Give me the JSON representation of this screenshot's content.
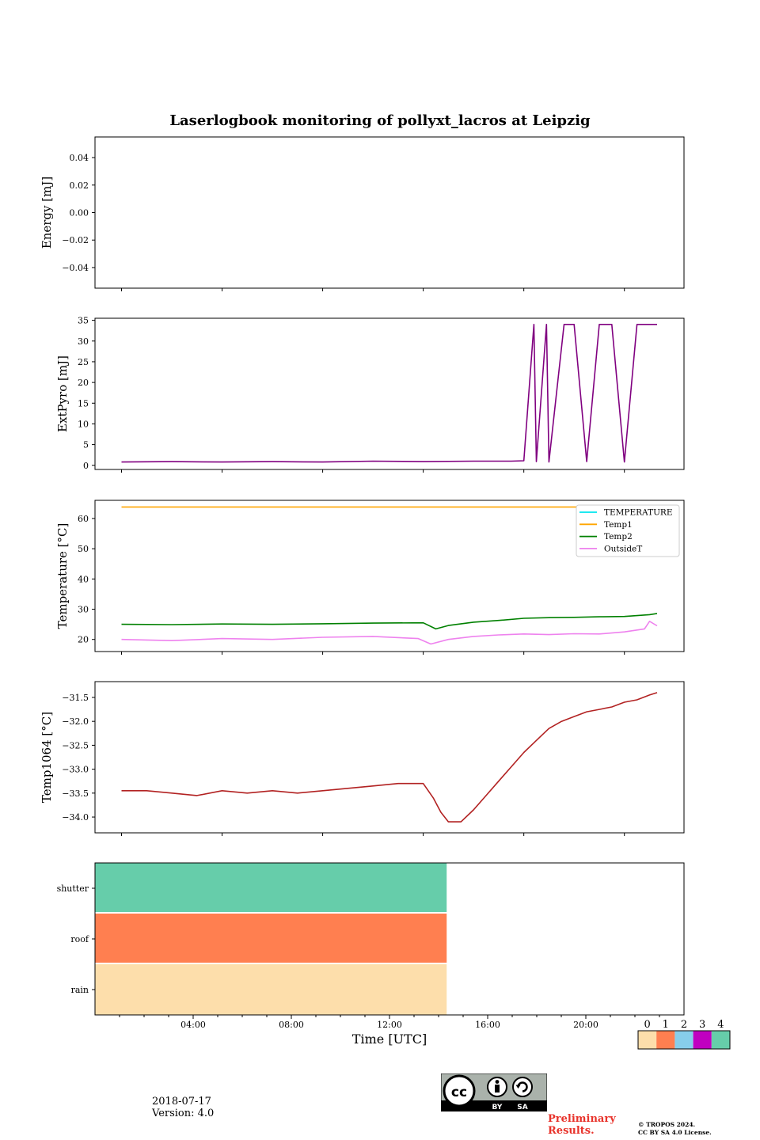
{
  "chart_data": [
    {
      "type": "line",
      "title": "Laserlogbook monitoring of pollyxt_lacros at Leipzig",
      "ylabel": "Energy [mJ]",
      "ylim": [
        -0.055,
        0.055
      ],
      "yticks": [
        "0.04",
        "0.02",
        "0.00",
        "−0.02",
        "−0.04"
      ],
      "ytick_values": [
        0.04,
        0.02,
        0.0,
        -0.02,
        -0.04
      ],
      "xtick_hours": [
        1,
        5,
        9,
        13,
        17,
        21
      ],
      "series": []
    },
    {
      "type": "line",
      "ylabel": "ExtPyro [mJ]",
      "ylim": [
        -1,
        35.5
      ],
      "yticks": [
        "35",
        "30",
        "25",
        "20",
        "15",
        "10",
        "5",
        "0"
      ],
      "ytick_values": [
        35,
        30,
        25,
        20,
        15,
        10,
        5,
        0
      ],
      "color": "#800080",
      "series": [
        {
          "x_hours": [
            1.0,
            3.0,
            5.0,
            7.0,
            9.0,
            11.0,
            13.0,
            15.0,
            16.5,
            17.0,
            17.4,
            17.5,
            17.9,
            18.0,
            18.6,
            19.0,
            19.5,
            20.0,
            20.5,
            21.0,
            21.5,
            22.0,
            22.3
          ],
          "values": [
            0.8,
            0.9,
            0.8,
            0.9,
            0.8,
            1.0,
            0.9,
            1.0,
            1.0,
            1.1,
            34,
            0.9,
            34,
            0.8,
            34,
            34,
            0.9,
            34,
            34,
            0.8,
            34,
            34,
            34
          ]
        }
      ]
    },
    {
      "type": "line",
      "ylabel": "Temperature [°C]",
      "ylim": [
        16,
        66
      ],
      "yticks": [
        "60",
        "50",
        "40",
        "30",
        "20"
      ],
      "ytick_values": [
        60,
        50,
        40,
        30,
        20
      ],
      "legend": "top-right",
      "series": [
        {
          "name": "TEMPERATURE",
          "color": "#00e5ee",
          "x_hours": [],
          "values": []
        },
        {
          "name": "Temp1",
          "color": "#ffa500",
          "x_hours": [
            1.0,
            22.3
          ],
          "values": [
            63.8,
            63.8
          ]
        },
        {
          "name": "Temp2",
          "color": "#008000",
          "x_hours": [
            1.0,
            3.0,
            5.0,
            7.0,
            9.0,
            11.0,
            13.0,
            13.5,
            14.0,
            15.0,
            16.0,
            17.0,
            18.0,
            19.0,
            20.0,
            21.0,
            22.0,
            22.3
          ],
          "values": [
            25.0,
            24.9,
            25.1,
            25.0,
            25.2,
            25.4,
            25.5,
            23.5,
            24.6,
            25.7,
            26.3,
            27.0,
            27.2,
            27.3,
            27.5,
            27.6,
            28.2,
            28.6
          ]
        },
        {
          "name": "OutsideT",
          "color": "#ee82ee",
          "x_hours": [
            1.0,
            3.0,
            5.0,
            7.0,
            9.0,
            11.0,
            12.8,
            13.3,
            14.0,
            15.0,
            16.0,
            17.0,
            18.0,
            19.0,
            20.0,
            21.0,
            21.8,
            22.0,
            22.3
          ],
          "values": [
            20.0,
            19.6,
            20.3,
            20.0,
            20.7,
            21.0,
            20.3,
            18.5,
            20.0,
            21.0,
            21.5,
            21.8,
            21.6,
            21.9,
            21.8,
            22.5,
            23.5,
            26.0,
            24.5
          ]
        }
      ]
    },
    {
      "type": "line",
      "ylabel": "Temp1064 [°C]",
      "ylim": [
        -34.33,
        -31.17
      ],
      "yticks": [
        "−31.5",
        "−32.0",
        "−32.5",
        "−33.0",
        "−33.5",
        "−34.0"
      ],
      "ytick_values": [
        -31.5,
        -32.0,
        -32.5,
        -33.0,
        -33.5,
        -34.0
      ],
      "color": "#b22222",
      "series": [
        {
          "x_hours": [
            1.0,
            2.0,
            3.0,
            4.0,
            5.0,
            6.0,
            7.0,
            8.0,
            9.0,
            10.0,
            11.0,
            12.0,
            13.0,
            13.4,
            13.7,
            14.0,
            14.5,
            15.0,
            15.5,
            16.0,
            16.5,
            17.0,
            17.5,
            18.0,
            18.5,
            19.0,
            19.5,
            20.0,
            20.5,
            21.0,
            21.5,
            22.0,
            22.3
          ],
          "values": [
            -33.45,
            -33.45,
            -33.5,
            -33.55,
            -33.45,
            -33.5,
            -33.45,
            -33.5,
            -33.45,
            -33.4,
            -33.35,
            -33.3,
            -33.3,
            -33.6,
            -33.9,
            -34.1,
            -34.1,
            -33.85,
            -33.55,
            -33.25,
            -32.95,
            -32.65,
            -32.4,
            -32.15,
            -32.0,
            -31.9,
            -31.8,
            -31.75,
            -31.7,
            -31.6,
            -31.55,
            -31.45,
            -31.4
          ]
        }
      ]
    },
    {
      "type": "heatmap",
      "xlabel": "Time [UTC]",
      "rows": [
        "shutter",
        "roof",
        "rain"
      ],
      "row_values": [
        4,
        1,
        0
      ],
      "flag_until_hour": 14.33,
      "xlim_hours": [
        0,
        24
      ],
      "xticks": [
        "04:00",
        "08:00",
        "12:00",
        "16:00",
        "20:00"
      ],
      "xtick_hours": [
        4,
        8,
        12,
        16,
        20
      ],
      "colorbar_labels": [
        "0",
        "1",
        "2",
        "3",
        "4"
      ],
      "colorbar_colors": [
        "#fddeab",
        "#ff7f50",
        "#87ceeb",
        "#c000c0",
        "#66cdaa"
      ]
    }
  ],
  "footer": {
    "date": "2018-07-17",
    "version": "Version: 4.0",
    "preliminary_line1": "Preliminary",
    "preliminary_line2": "Results.",
    "copyright_line1": "© TROPOS 2024.",
    "copyright_line2": "CC BY SA 4.0 License.",
    "cc_badge": [
      "BY",
      "SA"
    ]
  }
}
